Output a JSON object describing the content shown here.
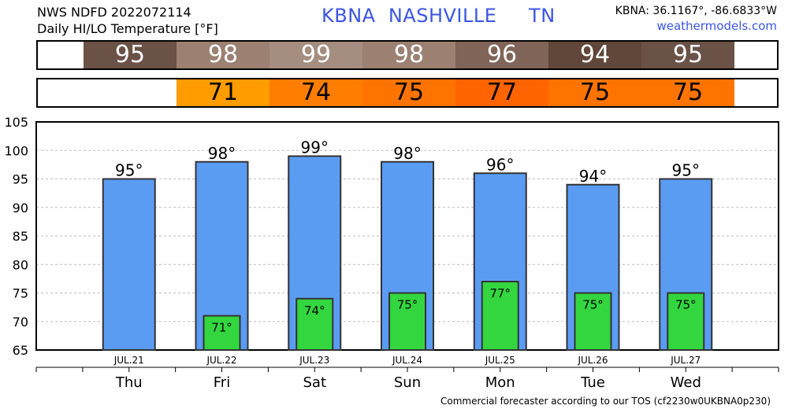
{
  "header": {
    "product": "NWS NDFD 2022072114",
    "subtitle": "Daily HI/LO Temperature [°F]",
    "station_line": "KBNA  NASHVILLE     TN",
    "coords": "KBNA: 36.1167°, -86.6833°W",
    "site": "weathermodels.com"
  },
  "hi_strip": [
    {
      "value": "95",
      "color": "#6b5246"
    },
    {
      "value": "98",
      "color": "#9c8173"
    },
    {
      "value": "99",
      "color": "#a58d80"
    },
    {
      "value": "98",
      "color": "#9c8173"
    },
    {
      "value": "96",
      "color": "#7f6457"
    },
    {
      "value": "94",
      "color": "#614739"
    },
    {
      "value": "95",
      "color": "#6b5246"
    }
  ],
  "lo_strip": [
    {
      "value": "",
      "color": "#ffffff"
    },
    {
      "value": "71",
      "color": "#ff9c00"
    },
    {
      "value": "74",
      "color": "#ff7d00"
    },
    {
      "value": "75",
      "color": "#ff7400"
    },
    {
      "value": "77",
      "color": "#ff6400"
    },
    {
      "value": "75",
      "color": "#ff7400"
    },
    {
      "value": "75",
      "color": "#ff7400"
    }
  ],
  "chart_data": {
    "type": "bar",
    "categories": [
      "JUL.21",
      "JUL.22",
      "JUL.23",
      "JUL.24",
      "JUL.25",
      "JUL.26",
      "JUL.27"
    ],
    "days": [
      "Thu",
      "Fri",
      "Sat",
      "Sun",
      "Mon",
      "Tue",
      "Wed"
    ],
    "series": [
      {
        "values": [
          95,
          98,
          99,
          98,
          96,
          94,
          95
        ],
        "color": "#5b9cf3"
      },
      {
        "values": [
          null,
          71,
          74,
          75,
          77,
          75,
          75
        ],
        "color": "#33d63f"
      }
    ],
    "hi_labels": [
      "95°",
      "98°",
      "99°",
      "98°",
      "96°",
      "94°",
      "95°"
    ],
    "lo_labels": [
      "",
      "71°",
      "74°",
      "75°",
      "77°",
      "75°",
      "75°"
    ],
    "ylim": [
      65,
      105
    ],
    "yticks": [
      65,
      70,
      75,
      80,
      85,
      90,
      95,
      100,
      105
    ],
    "grid": true
  },
  "footer": "Commercial forecaster according to our TOS (cf2230w0UKBNA0p230)"
}
